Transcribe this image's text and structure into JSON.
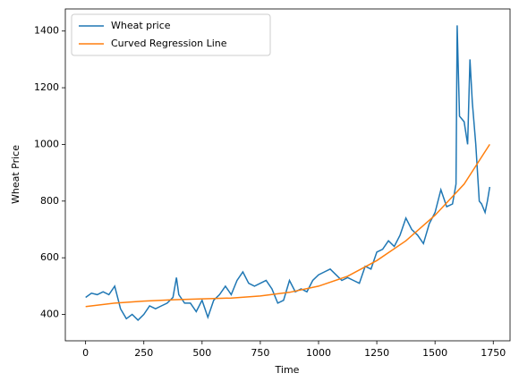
{
  "chart_data": {
    "type": "line",
    "xlabel": "Time",
    "ylabel": "Wheat Price",
    "xlim": [
      -87,
      1822
    ],
    "ylim": [
      307,
      1478
    ],
    "xticks": [
      0,
      250,
      500,
      750,
      1000,
      1250,
      1500,
      1750
    ],
    "yticks": [
      400,
      600,
      800,
      1000,
      1200,
      1400
    ],
    "legend": "upper left",
    "series": [
      {
        "name": "Wheat price",
        "color": "#1f77b4",
        "x": [
          0,
          25,
          50,
          75,
          100,
          125,
          150,
          175,
          200,
          225,
          250,
          275,
          300,
          325,
          350,
          375,
          390,
          400,
          425,
          450,
          475,
          500,
          525,
          550,
          575,
          600,
          625,
          650,
          675,
          700,
          725,
          750,
          775,
          800,
          825,
          850,
          875,
          900,
          925,
          950,
          975,
          1000,
          1025,
          1050,
          1075,
          1100,
          1125,
          1150,
          1175,
          1200,
          1225,
          1250,
          1275,
          1300,
          1325,
          1350,
          1375,
          1400,
          1425,
          1450,
          1475,
          1500,
          1525,
          1550,
          1575,
          1590,
          1595,
          1605,
          1625,
          1640,
          1650,
          1660,
          1675,
          1690,
          1700,
          1715,
          1725,
          1735
        ],
        "values": [
          460,
          475,
          470,
          480,
          470,
          500,
          420,
          385,
          400,
          380,
          400,
          430,
          420,
          430,
          440,
          460,
          530,
          470,
          440,
          440,
          410,
          450,
          390,
          450,
          470,
          500,
          470,
          520,
          550,
          510,
          500,
          510,
          520,
          490,
          440,
          450,
          520,
          480,
          490,
          480,
          520,
          540,
          550,
          560,
          540,
          520,
          530,
          520,
          510,
          570,
          560,
          620,
          630,
          660,
          640,
          680,
          740,
          700,
          680,
          650,
          720,
          760,
          840,
          780,
          790,
          860,
          1420,
          1100,
          1080,
          1000,
          1300,
          1150,
          1000,
          800,
          790,
          760,
          800,
          850
        ]
      },
      {
        "name": "Curved Regression Line",
        "color": "#ff7f0e",
        "x": [
          0,
          125,
          250,
          375,
          500,
          625,
          750,
          875,
          1000,
          1125,
          1250,
          1375,
          1500,
          1625,
          1735
        ],
        "values": [
          428,
          440,
          447,
          452,
          455,
          458,
          465,
          478,
          500,
          535,
          590,
          660,
          750,
          860,
          1000
        ]
      }
    ]
  }
}
